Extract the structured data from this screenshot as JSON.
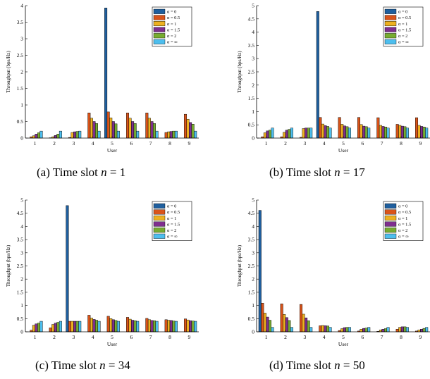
{
  "figure": {
    "captions": [
      {
        "prefix": "(a) Time slot",
        "var": "n",
        "eq": " = 1"
      },
      {
        "prefix": "(b) Time slot",
        "var": "n",
        "eq": " = 17"
      },
      {
        "prefix": "(c) Time slot",
        "var": "n",
        "eq": " = 34"
      },
      {
        "prefix": "(d) Time slot",
        "var": "n",
        "eq": " = 50"
      }
    ]
  },
  "chart_data": [
    {
      "type": "bar",
      "title": "",
      "xlabel": "User",
      "ylabel": "Throughput (bps/Hz)",
      "ylim": [
        0,
        4
      ],
      "yticks": [
        "0",
        "0.5",
        "1",
        "1.5",
        "2",
        "2.5",
        "3",
        "3.5",
        "4"
      ],
      "categories": [
        "1",
        "2",
        "3",
        "4",
        "5",
        "6",
        "7",
        "8",
        "9"
      ],
      "legend_position": "top-right",
      "series": [
        {
          "name": "α = 0",
          "color": "#1f5f9e",
          "values": [
            0,
            0,
            0,
            0,
            3.93,
            0,
            0,
            0,
            0
          ]
        },
        {
          "name": "α = 0.5",
          "color": "#d9541a",
          "values": [
            0.04,
            0.01,
            0.02,
            0.76,
            0.79,
            0.76,
            0.76,
            0.17,
            0.72
          ]
        },
        {
          "name": "α = 1",
          "color": "#edb120",
          "values": [
            0.07,
            0.04,
            0.17,
            0.6,
            0.61,
            0.6,
            0.6,
            0.19,
            0.57
          ]
        },
        {
          "name": "α = 1.5",
          "color": "#7e2f8e",
          "values": [
            0.12,
            0.08,
            0.19,
            0.5,
            0.5,
            0.5,
            0.5,
            0.2,
            0.47
          ]
        },
        {
          "name": "α = 2",
          "color": "#77ac30",
          "values": [
            0.16,
            0.12,
            0.2,
            0.44,
            0.43,
            0.44,
            0.44,
            0.21,
            0.42
          ]
        },
        {
          "name": "α = ∞",
          "color": "#4dbeee",
          "values": [
            0.21,
            0.21,
            0.21,
            0.21,
            0.21,
            0.21,
            0.21,
            0.21,
            0.21
          ]
        }
      ]
    },
    {
      "type": "bar",
      "title": "",
      "xlabel": "User",
      "ylabel": "Throughput (bps/Hz)",
      "ylim": [
        0,
        5
      ],
      "yticks": [
        "0",
        "0.5",
        "1",
        "1.5",
        "2",
        "2.5",
        "3",
        "3.5",
        "4",
        "4.5",
        "5"
      ],
      "categories": [
        "1",
        "2",
        "3",
        "4",
        "5",
        "6",
        "7",
        "8",
        "9"
      ],
      "legend_position": "top-right",
      "series": [
        {
          "name": "α = 0",
          "color": "#1f5f9e",
          "values": [
            0,
            0,
            0,
            4.78,
            0,
            0,
            0,
            0,
            0
          ]
        },
        {
          "name": "α = 0.5",
          "color": "#d9541a",
          "values": [
            0.05,
            0.05,
            0.03,
            0.78,
            0.78,
            0.78,
            0.77,
            0.52,
            0.77
          ]
        },
        {
          "name": "α = 1",
          "color": "#edb120",
          "values": [
            0.2,
            0.22,
            0.36,
            0.53,
            0.52,
            0.51,
            0.48,
            0.48,
            0.48
          ]
        },
        {
          "name": "α = 1.5",
          "color": "#7e2f8e",
          "values": [
            0.27,
            0.3,
            0.38,
            0.47,
            0.46,
            0.45,
            0.44,
            0.45,
            0.44
          ]
        },
        {
          "name": "α = 2",
          "color": "#77ac30",
          "values": [
            0.3,
            0.33,
            0.38,
            0.44,
            0.43,
            0.43,
            0.42,
            0.43,
            0.42
          ]
        },
        {
          "name": "α = ∞",
          "color": "#4dbeee",
          "values": [
            0.38,
            0.38,
            0.38,
            0.38,
            0.38,
            0.38,
            0.38,
            0.38,
            0.38
          ]
        }
      ]
    },
    {
      "type": "bar",
      "title": "",
      "xlabel": "User",
      "ylabel": "Throughput (bps/Hz)",
      "ylim": [
        0,
        5
      ],
      "yticks": [
        "0",
        "0.5",
        "1",
        "1.5",
        "2",
        "2.5",
        "3",
        "3.5",
        "4",
        "4.5",
        "5"
      ],
      "categories": [
        "1",
        "2",
        "3",
        "4",
        "5",
        "6",
        "7",
        "8",
        "9"
      ],
      "legend_position": "top-right",
      "series": [
        {
          "name": "α = 0",
          "color": "#1f5f9e",
          "values": [
            0,
            0,
            4.79,
            0,
            0,
            0,
            0,
            0,
            0
          ]
        },
        {
          "name": "α = 0.5",
          "color": "#d9541a",
          "values": [
            0.06,
            0.15,
            0.4,
            0.63,
            0.59,
            0.55,
            0.51,
            0.46,
            0.49
          ]
        },
        {
          "name": "α = 1",
          "color": "#edb120",
          "values": [
            0.25,
            0.28,
            0.4,
            0.52,
            0.5,
            0.48,
            0.46,
            0.44,
            0.45
          ]
        },
        {
          "name": "α = 1.5",
          "color": "#7e2f8e",
          "values": [
            0.3,
            0.33,
            0.4,
            0.47,
            0.46,
            0.44,
            0.43,
            0.43,
            0.42
          ]
        },
        {
          "name": "α = 2",
          "color": "#77ac30",
          "values": [
            0.33,
            0.36,
            0.4,
            0.44,
            0.43,
            0.42,
            0.42,
            0.41,
            0.41
          ]
        },
        {
          "name": "α = ∞",
          "color": "#4dbeee",
          "values": [
            0.4,
            0.4,
            0.4,
            0.4,
            0.4,
            0.4,
            0.4,
            0.4,
            0.4
          ]
        }
      ]
    },
    {
      "type": "bar",
      "title": "",
      "xlabel": "User",
      "ylabel": "Throughput (bps/Hz)",
      "ylim": [
        0,
        5
      ],
      "yticks": [
        "0",
        "0.5",
        "1",
        "1.5",
        "2",
        "2.5",
        "3",
        "3.5",
        "4",
        "4.5",
        "5"
      ],
      "categories": [
        "1",
        "2",
        "3",
        "4",
        "5",
        "6",
        "7",
        "8",
        "9"
      ],
      "legend_position": "top-right",
      "series": [
        {
          "name": "α = 0",
          "color": "#1f5f9e",
          "values": [
            4.61,
            0,
            0,
            0,
            0,
            0,
            0,
            0,
            0
          ]
        },
        {
          "name": "α = 0.5",
          "color": "#d9541a",
          "values": [
            1.09,
            1.06,
            1.04,
            0.23,
            0.05,
            0.03,
            0.02,
            0.1,
            0.03
          ]
        },
        {
          "name": "α = 1",
          "color": "#edb120",
          "values": [
            0.71,
            0.66,
            0.67,
            0.24,
            0.12,
            0.1,
            0.07,
            0.17,
            0.07
          ]
        },
        {
          "name": "α = 1.5",
          "color": "#7e2f8e",
          "values": [
            0.56,
            0.54,
            0.53,
            0.23,
            0.16,
            0.13,
            0.1,
            0.19,
            0.1
          ]
        },
        {
          "name": "α = 2",
          "color": "#77ac30",
          "values": [
            0.44,
            0.43,
            0.42,
            0.22,
            0.17,
            0.14,
            0.12,
            0.19,
            0.13
          ]
        },
        {
          "name": "α = ∞",
          "color": "#4dbeee",
          "values": [
            0.17,
            0.17,
            0.17,
            0.17,
            0.17,
            0.17,
            0.17,
            0.17,
            0.17
          ]
        }
      ]
    }
  ]
}
